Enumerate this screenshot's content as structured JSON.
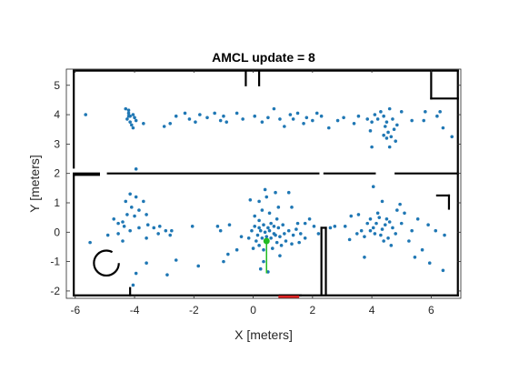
{
  "chart_data": {
    "type": "scatter",
    "title": "AMCL update = 8",
    "xlabel": "X [meters]",
    "ylabel": "Y [meters]",
    "xlim": [
      -6.3,
      7.0
    ],
    "ylim": [
      -2.25,
      5.55
    ],
    "xticks": [
      -6,
      -4,
      -2,
      0,
      2,
      4,
      6
    ],
    "yticks": [
      -2,
      -1,
      0,
      1,
      2,
      3,
      4,
      5
    ],
    "grid": false,
    "colors": {
      "particles": "#1f77b4",
      "map": "#000000",
      "pose": "#22bb22",
      "laser": "#dd2222"
    },
    "robot_pose": {
      "x": 0.45,
      "y": -0.3,
      "heading_deg": -90
    },
    "laser_scan_x": [
      0.85,
      1.55
    ],
    "laser_scan_y": -2.2,
    "map_walls": [
      [
        [
          -6.05,
          -2.15
        ],
        [
          6.9,
          -2.15
        ]
      ],
      [
        [
          -6.05,
          5.5
        ],
        [
          6.9,
          5.5
        ]
      ],
      [
        [
          -6.05,
          -2.15
        ],
        [
          -6.05,
          1.95
        ]
      ],
      [
        [
          -6.05,
          2.2
        ],
        [
          -6.05,
          5.5
        ]
      ],
      [
        [
          6.9,
          -2.15
        ],
        [
          6.9,
          5.5
        ]
      ],
      [
        [
          -6.05,
          2.0
        ],
        [
          -5.2,
          2.0
        ]
      ],
      [
        [
          -4.9,
          2.0
        ],
        [
          2.2,
          2.0
        ]
      ],
      [
        [
          2.4,
          2.0
        ],
        [
          4.1,
          2.0
        ]
      ],
      [
        [
          4.8,
          2.0
        ],
        [
          6.9,
          2.0
        ]
      ],
      [
        [
          -6.05,
          1.95
        ],
        [
          -5.2,
          1.95
        ]
      ],
      [
        [
          2.3,
          -2.1
        ],
        [
          2.3,
          0.15
        ]
      ],
      [
        [
          2.45,
          -2.1
        ],
        [
          2.45,
          0.15
        ]
      ],
      [
        [
          2.3,
          0.15
        ],
        [
          2.45,
          0.15
        ]
      ],
      [
        [
          6.2,
          1.25
        ],
        [
          6.6,
          1.25
        ]
      ],
      [
        [
          6.6,
          1.25
        ],
        [
          6.6,
          0.8
        ]
      ],
      [
        [
          6.0,
          4.55
        ],
        [
          6.9,
          4.55
        ]
      ],
      [
        [
          6.0,
          4.55
        ],
        [
          6.0,
          5.5
        ]
      ],
      [
        [
          -0.25,
          5.0
        ],
        [
          -0.25,
          5.5
        ]
      ],
      [
        [
          0.2,
          5.0
        ],
        [
          0.2,
          5.5
        ]
      ],
      [
        [
          0.9,
          -2.15
        ],
        [
          1.6,
          -2.15
        ]
      ],
      [
        [
          -4.15,
          -1.9
        ],
        [
          -4.15,
          -2.15
        ]
      ]
    ],
    "obstacle_circle": {
      "x": -4.95,
      "y": -1.05,
      "r": 0.42
    },
    "particles": [
      [
        -5.65,
        4.0
      ],
      [
        -4.2,
        4.15
      ],
      [
        -4.2,
        4.05
      ],
      [
        -4.15,
        3.95
      ],
      [
        -4.05,
        4.0
      ],
      [
        -4.25,
        3.85
      ],
      [
        -4.0,
        3.9
      ],
      [
        -4.15,
        3.75
      ],
      [
        -4.3,
        4.2
      ],
      [
        -4.1,
        3.65
      ],
      [
        -3.95,
        3.8
      ],
      [
        -4.05,
        3.55
      ],
      [
        -4.2,
        3.95
      ],
      [
        -3.7,
        3.7
      ],
      [
        -3.0,
        3.6
      ],
      [
        -2.8,
        3.7
      ],
      [
        -2.6,
        3.95
      ],
      [
        -2.3,
        4.05
      ],
      [
        -2.15,
        3.85
      ],
      [
        -1.95,
        3.75
      ],
      [
        -1.8,
        4.0
      ],
      [
        -1.55,
        3.9
      ],
      [
        -1.3,
        4.05
      ],
      [
        -1.1,
        3.8
      ],
      [
        -1.0,
        3.95
      ],
      [
        -0.9,
        3.75
      ],
      [
        -0.55,
        4.05
      ],
      [
        -0.35,
        3.85
      ],
      [
        0.05,
        3.95
      ],
      [
        0.3,
        3.75
      ],
      [
        0.5,
        3.9
      ],
      [
        0.7,
        4.2
      ],
      [
        0.9,
        3.85
      ],
      [
        1.05,
        3.6
      ],
      [
        1.25,
        4.0
      ],
      [
        1.35,
        3.85
      ],
      [
        1.5,
        4.05
      ],
      [
        1.7,
        3.7
      ],
      [
        1.8,
        3.9
      ],
      [
        2.0,
        3.8
      ],
      [
        2.15,
        4.05
      ],
      [
        2.3,
        3.95
      ],
      [
        2.55,
        3.55
      ],
      [
        2.85,
        3.8
      ],
      [
        3.05,
        3.9
      ],
      [
        3.4,
        3.7
      ],
      [
        3.55,
        3.95
      ],
      [
        3.85,
        3.85
      ],
      [
        4.0,
        3.75
      ],
      [
        4.1,
        4.0
      ],
      [
        4.2,
        3.85
      ],
      [
        4.3,
        4.1
      ],
      [
        4.4,
        3.95
      ],
      [
        4.5,
        3.75
      ],
      [
        4.6,
        4.2
      ],
      [
        4.45,
        3.6
      ],
      [
        4.7,
        3.85
      ],
      [
        4.55,
        3.4
      ],
      [
        4.65,
        3.25
      ],
      [
        4.75,
        3.5
      ],
      [
        4.5,
        3.2
      ],
      [
        4.8,
        3.1
      ],
      [
        4.6,
        2.9
      ],
      [
        4.4,
        3.3
      ],
      [
        3.95,
        3.45
      ],
      [
        4.0,
        2.9
      ],
      [
        4.85,
        3.65
      ],
      [
        5.0,
        4.1
      ],
      [
        5.35,
        3.8
      ],
      [
        5.75,
        3.8
      ],
      [
        5.8,
        4.1
      ],
      [
        6.3,
        4.1
      ],
      [
        6.4,
        3.55
      ],
      [
        6.7,
        3.25
      ],
      [
        6.2,
        3.95
      ],
      [
        -3.95,
        2.15
      ],
      [
        -4.15,
        1.3
      ],
      [
        -4.3,
        1.05
      ],
      [
        -4.1,
        0.85
      ],
      [
        -3.85,
        0.75
      ],
      [
        -4.25,
        0.6
      ],
      [
        -4.0,
        0.55
      ],
      [
        -3.6,
        0.6
      ],
      [
        -4.4,
        0.35
      ],
      [
        -4.7,
        0.45
      ],
      [
        -4.55,
        0.3
      ],
      [
        -4.35,
        0.2
      ],
      [
        -4.15,
        0.05
      ],
      [
        -3.85,
        0.15
      ],
      [
        -3.55,
        0.25
      ],
      [
        -3.35,
        0.15
      ],
      [
        -3.15,
        0.2
      ],
      [
        -2.95,
        0.05
      ],
      [
        -2.8,
        -0.1
      ],
      [
        -2.75,
        0.05
      ],
      [
        -3.2,
        -0.05
      ],
      [
        -3.6,
        -0.2
      ],
      [
        -4.55,
        -0.05
      ],
      [
        -4.4,
        -0.3
      ],
      [
        -4.9,
        -0.1
      ],
      [
        -5.5,
        -0.35
      ],
      [
        -3.7,
        1.05
      ],
      [
        -3.95,
        1.2
      ],
      [
        -2.05,
        0.2
      ],
      [
        -1.2,
        0.2
      ],
      [
        -1.1,
        0.05
      ],
      [
        -0.8,
        0.25
      ],
      [
        -0.4,
        -0.15
      ],
      [
        -0.55,
        -0.6
      ],
      [
        -0.85,
        -0.75
      ],
      [
        -1.0,
        -1.0
      ],
      [
        -1.85,
        -1.15
      ],
      [
        -2.6,
        -0.95
      ],
      [
        -3.6,
        -1.05
      ],
      [
        -3.95,
        -1.4
      ],
      [
        -4.05,
        -1.8
      ],
      [
        -2.9,
        -1.45
      ],
      [
        -0.1,
        1.1
      ],
      [
        0.2,
        1.05
      ],
      [
        0.45,
        1.2
      ],
      [
        0.75,
        1.35
      ],
      [
        0.4,
        1.45
      ],
      [
        0.05,
        0.55
      ],
      [
        0.3,
        0.75
      ],
      [
        0.55,
        0.65
      ],
      [
        0.85,
        0.85
      ],
      [
        1.2,
        1.35
      ],
      [
        1.3,
        0.85
      ],
      [
        1.5,
        0.3
      ],
      [
        1.75,
        0.3
      ],
      [
        1.9,
        0.45
      ],
      [
        0.05,
        0.2
      ],
      [
        0.2,
        0.15
      ],
      [
        0.35,
        0.25
      ],
      [
        0.5,
        0.15
      ],
      [
        0.6,
        0.3
      ],
      [
        0.7,
        0.2
      ],
      [
        0.85,
        0.15
      ],
      [
        1.0,
        0.25
      ],
      [
        0.25,
        0.05
      ],
      [
        0.4,
        0.0
      ],
      [
        0.55,
        0.05
      ],
      [
        0.7,
        -0.05
      ],
      [
        0.15,
        -0.1
      ],
      [
        0.3,
        -0.2
      ],
      [
        0.45,
        -0.15
      ],
      [
        0.6,
        -0.2
      ],
      [
        0.75,
        -0.1
      ],
      [
        0.9,
        -0.15
      ],
      [
        1.05,
        -0.05
      ],
      [
        1.2,
        0.05
      ],
      [
        1.35,
        -0.1
      ],
      [
        1.45,
        0.1
      ],
      [
        1.6,
        -0.05
      ],
      [
        1.75,
        -0.2
      ],
      [
        1.55,
        -0.35
      ],
      [
        1.3,
        -0.4
      ],
      [
        1.1,
        -0.3
      ],
      [
        0.95,
        -0.45
      ],
      [
        0.8,
        -0.35
      ],
      [
        0.2,
        -0.45
      ],
      [
        0.1,
        -0.3
      ],
      [
        -0.05,
        0.05
      ],
      [
        -0.15,
        -0.2
      ],
      [
        0.0,
        -0.55
      ],
      [
        0.35,
        -0.6
      ],
      [
        0.65,
        -0.55
      ],
      [
        0.9,
        -0.8
      ],
      [
        0.35,
        -1.0
      ],
      [
        0.25,
        -1.25
      ],
      [
        0.5,
        -1.35
      ],
      [
        0.2,
        0.4
      ],
      [
        0.8,
        0.45
      ],
      [
        2.05,
        0.2
      ],
      [
        2.2,
        -0.05
      ],
      [
        2.6,
        0.15
      ],
      [
        2.75,
        0.2
      ],
      [
        3.1,
        0.2
      ],
      [
        3.25,
        -0.25
      ],
      [
        3.3,
        0.55
      ],
      [
        3.55,
        0.6
      ],
      [
        3.5,
        -0.05
      ],
      [
        3.65,
        0.05
      ],
      [
        3.75,
        -0.15
      ],
      [
        3.85,
        0.3
      ],
      [
        3.95,
        0.45
      ],
      [
        4.05,
        0.15
      ],
      [
        4.15,
        0.3
      ],
      [
        4.25,
        0.5
      ],
      [
        4.35,
        0.1
      ],
      [
        4.45,
        0.25
      ],
      [
        4.5,
        0.45
      ],
      [
        4.6,
        0.35
      ],
      [
        4.7,
        0.15
      ],
      [
        4.8,
        -0.05
      ],
      [
        4.55,
        -0.2
      ],
      [
        4.3,
        -0.1
      ],
      [
        4.1,
        -0.05
      ],
      [
        3.95,
        0.05
      ],
      [
        4.4,
        -0.3
      ],
      [
        4.65,
        -0.45
      ],
      [
        5.0,
        0.3
      ],
      [
        5.1,
        0.65
      ],
      [
        4.95,
        0.95
      ],
      [
        4.35,
        1.05
      ],
      [
        4.2,
        0.65
      ],
      [
        4.05,
        1.55
      ],
      [
        4.85,
        0.75
      ],
      [
        5.25,
        -0.3
      ],
      [
        5.35,
        0.05
      ],
      [
        5.55,
        0.45
      ],
      [
        5.9,
        0.25
      ],
      [
        6.15,
        0.05
      ],
      [
        6.45,
        -0.1
      ],
      [
        5.7,
        -0.6
      ],
      [
        5.45,
        -0.85
      ],
      [
        5.95,
        -1.05
      ],
      [
        6.4,
        -1.3
      ],
      [
        3.75,
        -0.85
      ]
    ]
  }
}
